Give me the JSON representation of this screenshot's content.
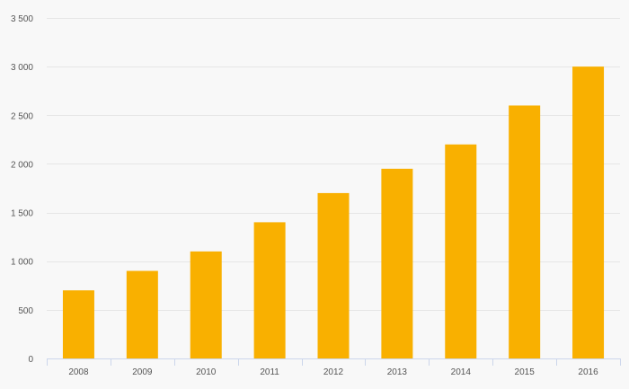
{
  "chart_data": {
    "type": "bar",
    "title": "",
    "xlabel": "",
    "ylabel": "",
    "categories": [
      "2008",
      "2009",
      "2010",
      "2011",
      "2012",
      "2013",
      "2014",
      "2015",
      "2016"
    ],
    "values": [
      700,
      900,
      1100,
      1400,
      1700,
      1950,
      2200,
      2600,
      3000
    ],
    "ylim": [
      0,
      3500
    ],
    "yticks": [
      0,
      500,
      1000,
      1500,
      2000,
      2500,
      3000,
      3500
    ],
    "ytick_labels": [
      "0",
      "500",
      "1 000",
      "1 500",
      "2 000",
      "2 500",
      "3 000",
      "3 500"
    ],
    "grid": true,
    "legend": "none",
    "bar_color": "#f9b000",
    "grid_color": "#e6e6e6",
    "axis_color": "#ccd6eb",
    "background": "#f8f8f8"
  }
}
